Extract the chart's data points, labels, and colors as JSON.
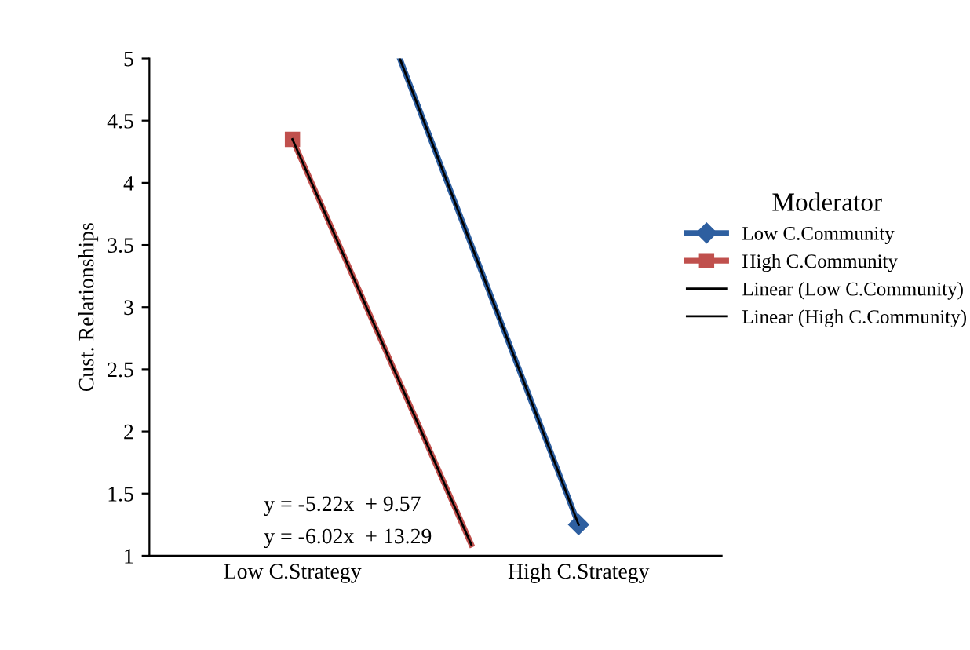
{
  "chart_data": {
    "type": "line",
    "ylabel": "Cust. Relationships",
    "legend_title": "Moderator",
    "legend": "right",
    "grid": false,
    "categories": [
      null,
      null,
      null,
      null,
      "Low C.Strategy",
      null,
      null,
      null,
      null,
      null,
      null,
      null,
      "High C.Strategy",
      null,
      null,
      null,
      null
    ],
    "ylim": [
      1,
      5
    ],
    "yticks": [
      1,
      1.5,
      2,
      2.5,
      3,
      3.5,
      4,
      4.5,
      5
    ],
    "series": [
      {
        "name": "Low C.Community",
        "color": "#2e5fa0",
        "values": [
          null,
          null,
          null,
          null,
          null,
          null,
          null,
          5,
          null,
          null,
          null,
          null,
          1.25,
          null,
          null,
          null,
          null
        ],
        "marker": "diamond"
      },
      {
        "name": "High C.Community",
        "color": "#c0504d",
        "values": [
          null,
          null,
          null,
          null,
          4.35,
          null,
          null,
          null,
          null,
          1.09,
          null,
          null,
          null,
          null,
          null,
          null,
          null
        ],
        "marker": "square"
      },
      {
        "name": "Linear (Low C.Community)",
        "color": "#000000",
        "values": [
          null,
          null,
          null,
          null,
          null,
          null,
          null,
          5,
          null,
          null,
          null,
          null,
          1.25,
          null,
          null,
          null,
          null
        ],
        "marker": "none"
      },
      {
        "name": "Linear (High C.Community)",
        "color": "#000000",
        "values": [
          null,
          null,
          null,
          null,
          4.35,
          null,
          null,
          null,
          null,
          1.09,
          null,
          null,
          null,
          null,
          null,
          null,
          null
        ],
        "marker": "none"
      }
    ],
    "annotations": [
      "y = -5.22x  + 9.57",
      "y = -6.02x  + 13.29"
    ]
  }
}
